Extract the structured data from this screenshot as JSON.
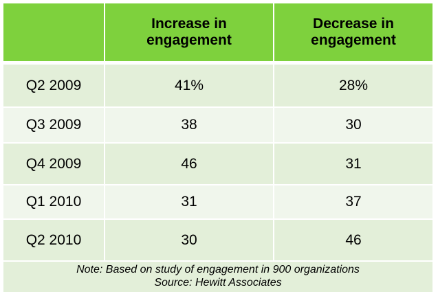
{
  "chart_data": {
    "type": "table",
    "columns": [
      "",
      "Increase in engagement",
      "Decrease in engagement"
    ],
    "header": {
      "corner": "",
      "increase_line1": "Increase in",
      "increase_line2": "engagement",
      "decrease_line1": "Decrease in",
      "decrease_line2": "engagement"
    },
    "rows": [
      {
        "period": "Q2 2009",
        "increase": "41%",
        "decrease": "28%"
      },
      {
        "period": "Q3 2009",
        "increase": "38",
        "decrease": "30"
      },
      {
        "period": "Q4 2009",
        "increase": "46",
        "decrease": "31"
      },
      {
        "period": "Q1 2010",
        "increase": "31",
        "decrease": "37"
      },
      {
        "period": "Q2 2010",
        "increase": "30",
        "decrease": "46"
      }
    ],
    "series": [
      {
        "name": "Increase in engagement",
        "values": [
          41,
          38,
          46,
          31,
          30
        ]
      },
      {
        "name": "Decrease in engagement",
        "values": [
          28,
          30,
          31,
          37,
          46
        ]
      }
    ],
    "categories": [
      "Q2 2009",
      "Q3 2009",
      "Q4 2009",
      "Q1 2010",
      "Q2 2010"
    ],
    "note": "Note: Based on study of engagement in 900 organizations",
    "source": "Source: Hewitt Associates"
  },
  "colors": {
    "header_bg": "#7ed13d",
    "row_dark": "#e3efd9",
    "row_light": "#f0f6ec",
    "text": "#000000"
  }
}
